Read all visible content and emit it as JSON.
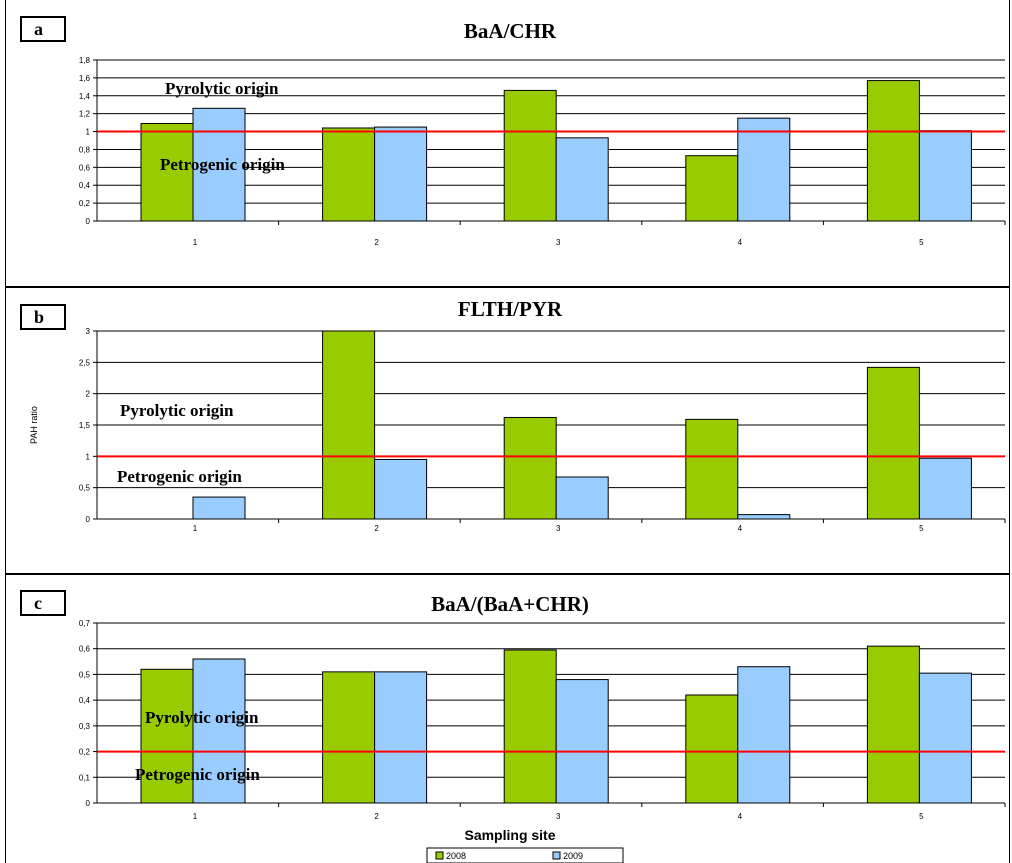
{
  "chart_data": [
    {
      "type": "bar",
      "panel_label": "a",
      "title": "BaA/CHR",
      "categories": [
        "1",
        "2",
        "3",
        "4",
        "5"
      ],
      "series": [
        {
          "name": "2008",
          "values": [
            1.09,
            1.04,
            1.46,
            0.73,
            1.57
          ]
        },
        {
          "name": "2009",
          "values": [
            1.26,
            1.05,
            0.93,
            1.15,
            1.01
          ]
        }
      ],
      "yticks": [
        "0",
        "0,2",
        "0,4",
        "0,6",
        "0,8",
        "1",
        "1,2",
        "1,4",
        "1,6",
        "1,8"
      ],
      "ylim": [
        0,
        1.8
      ],
      "ylabel": "",
      "xlabel": "",
      "threshold": 1,
      "annotations": [
        "Pyrolytic origin",
        "Petrogenic origin"
      ],
      "grid": true
    },
    {
      "type": "bar",
      "panel_label": "b",
      "title": "FLTH/PYR",
      "categories": [
        "1",
        "2",
        "3",
        "4",
        "5"
      ],
      "series": [
        {
          "name": "2008",
          "values": [
            0,
            3.0,
            1.62,
            1.59,
            2.42
          ]
        },
        {
          "name": "2009",
          "values": [
            0.35,
            0.95,
            0.67,
            0.07,
            0.97
          ]
        }
      ],
      "yticks": [
        "0",
        "0,5",
        "1",
        "1,5",
        "2",
        "2,5",
        "3"
      ],
      "ylim": [
        0,
        3
      ],
      "ylabel": "PAH ratio",
      "xlabel": "",
      "threshold": 1,
      "annotations": [
        "Pyrolytic origin",
        "Petrogenic origin"
      ],
      "grid": true
    },
    {
      "type": "bar",
      "panel_label": "c",
      "title": "BaA/(BaA+CHR)",
      "categories": [
        "1",
        "2",
        "3",
        "4",
        "5"
      ],
      "series": [
        {
          "name": "2008",
          "values": [
            0.52,
            0.51,
            0.595,
            0.42,
            0.61
          ]
        },
        {
          "name": "2009",
          "values": [
            0.56,
            0.51,
            0.48,
            0.53,
            0.505
          ]
        }
      ],
      "yticks": [
        "0",
        "0,1",
        "0,2",
        "0,3",
        "0,4",
        "0,5",
        "0,6",
        "0,7"
      ],
      "ylim": [
        0,
        0.7
      ],
      "ylabel": "",
      "xlabel": "Sampling site",
      "threshold": 0.2,
      "annotations": [
        "Pyrolytic origin",
        "Petrogenic origin"
      ],
      "grid": true
    }
  ],
  "legend": {
    "items": [
      "2008",
      "2009"
    ]
  },
  "colors": {
    "series_2008": "#99cc00",
    "series_2009": "#99ccff",
    "threshold": "#ff0000",
    "grid": "#000000"
  }
}
